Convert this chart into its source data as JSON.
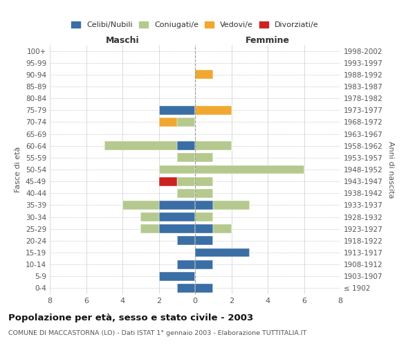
{
  "age_groups": [
    "100+",
    "95-99",
    "90-94",
    "85-89",
    "80-84",
    "75-79",
    "70-74",
    "65-69",
    "60-64",
    "55-59",
    "50-54",
    "45-49",
    "40-44",
    "35-39",
    "30-34",
    "25-29",
    "20-24",
    "15-19",
    "10-14",
    "5-9",
    "0-4"
  ],
  "birth_years": [
    "≤ 1902",
    "1903-1907",
    "1908-1912",
    "1913-1917",
    "1918-1922",
    "1923-1927",
    "1928-1932",
    "1933-1937",
    "1938-1942",
    "1943-1947",
    "1948-1952",
    "1953-1957",
    "1958-1962",
    "1963-1967",
    "1968-1972",
    "1973-1977",
    "1978-1982",
    "1983-1987",
    "1988-1992",
    "1993-1997",
    "1998-2002"
  ],
  "males": {
    "celibi": [
      0,
      0,
      0,
      0,
      0,
      2,
      0,
      0,
      1,
      0,
      0,
      0,
      0,
      2,
      2,
      2,
      1,
      0,
      1,
      2,
      1
    ],
    "coniugati": [
      0,
      0,
      0,
      0,
      0,
      0,
      1,
      0,
      4,
      1,
      2,
      1,
      1,
      2,
      1,
      1,
      0,
      0,
      0,
      0,
      0
    ],
    "vedovi": [
      0,
      0,
      0,
      0,
      0,
      0,
      1,
      0,
      0,
      0,
      0,
      0,
      0,
      0,
      0,
      0,
      0,
      0,
      0,
      0,
      0
    ],
    "divorziati": [
      0,
      0,
      0,
      0,
      0,
      0,
      0,
      0,
      0,
      0,
      0,
      1,
      0,
      0,
      0,
      0,
      0,
      0,
      0,
      0,
      0
    ]
  },
  "females": {
    "nubili": [
      0,
      0,
      0,
      0,
      0,
      0,
      0,
      0,
      0,
      0,
      0,
      0,
      0,
      1,
      0,
      1,
      1,
      3,
      1,
      0,
      1
    ],
    "coniugate": [
      0,
      0,
      0,
      0,
      0,
      0,
      0,
      0,
      2,
      1,
      6,
      1,
      1,
      2,
      1,
      1,
      0,
      0,
      0,
      0,
      0
    ],
    "vedove": [
      0,
      0,
      1,
      0,
      0,
      2,
      0,
      0,
      0,
      0,
      0,
      0,
      0,
      0,
      0,
      0,
      0,
      0,
      0,
      0,
      0
    ],
    "divorziate": [
      0,
      0,
      0,
      0,
      0,
      0,
      0,
      0,
      0,
      0,
      0,
      0,
      0,
      0,
      0,
      0,
      0,
      0,
      0,
      0,
      0
    ]
  },
  "colors": {
    "celibi": "#3a6ea5",
    "coniugati": "#b5c98e",
    "vedovi": "#f0a830",
    "divorziati": "#cc2222"
  },
  "xlim": 8,
  "title": "Popolazione per età, sesso e stato civile - 2003",
  "subtitle": "COMUNE DI MACCASTORNA (LO) - Dati ISTAT 1° gennaio 2003 - Elaborazione TUTTITALIA.IT",
  "xlabel_left": "Maschi",
  "xlabel_right": "Femmine",
  "ylabel_left": "Fasce di età",
  "ylabel_right": "Anni di nascita",
  "legend_labels": [
    "Celibi/Nubili",
    "Coniugati/e",
    "Vedovi/e",
    "Divorziati/e"
  ],
  "bg_color": "#ffffff",
  "grid_color": "#cccccc"
}
